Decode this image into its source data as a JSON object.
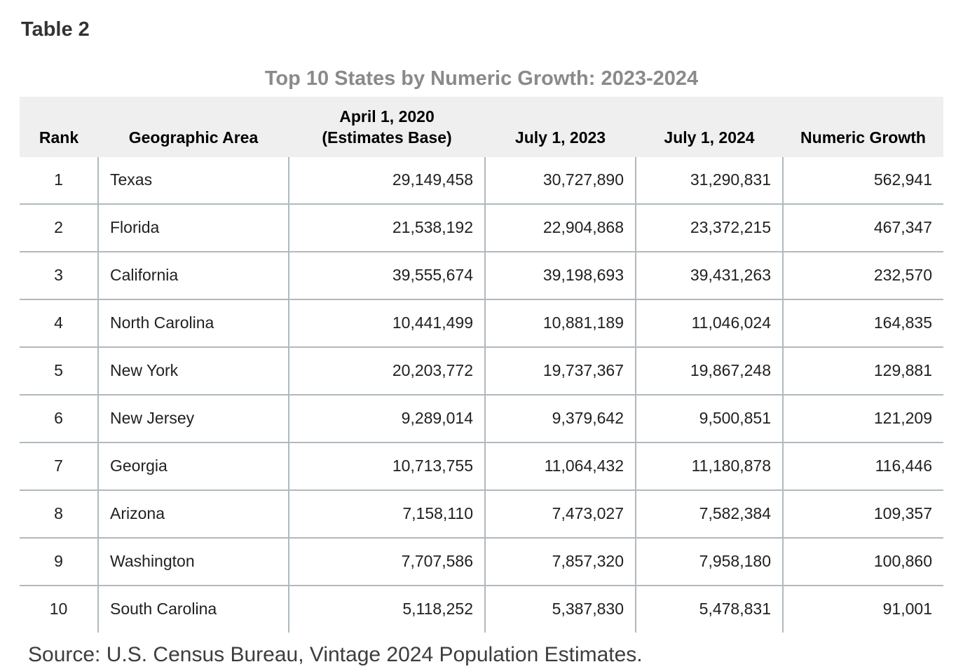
{
  "page": {
    "label": "Table 2",
    "title": "Top 10 States by Numeric Growth: 2023-2024",
    "source": "Source: U.S. Census Bureau, Vintage 2024 Population Estimates."
  },
  "colors": {
    "header_bg": "#efefef",
    "table_border": "#b0b9bd",
    "title_text": "#8a8a8a",
    "label_text": "#333333",
    "body_text": "#212121",
    "source_text": "#3d3d3d"
  },
  "table": {
    "columns": [
      {
        "key": "rank",
        "label": "Rank",
        "align": "center"
      },
      {
        "key": "area",
        "label": "Geographic Area",
        "align": "left"
      },
      {
        "key": "base_2020",
        "label": "April 1, 2020\n(Estimates Base)",
        "align": "right"
      },
      {
        "key": "jul_2023",
        "label": "July 1, 2023",
        "align": "right"
      },
      {
        "key": "jul_2024",
        "label": "July 1, 2024",
        "align": "right"
      },
      {
        "key": "growth",
        "label": "Numeric Growth",
        "align": "right"
      }
    ],
    "rows": [
      [
        "1",
        "Texas",
        "29,149,458",
        "30,727,890",
        "31,290,831",
        "562,941"
      ],
      [
        "2",
        "Florida",
        "21,538,192",
        "22,904,868",
        "23,372,215",
        "467,347"
      ],
      [
        "3",
        "California",
        "39,555,674",
        "39,198,693",
        "39,431,263",
        "232,570"
      ],
      [
        "4",
        "North Carolina",
        "10,441,499",
        "10,881,189",
        "11,046,024",
        "164,835"
      ],
      [
        "5",
        "New York",
        "20,203,772",
        "19,737,367",
        "19,867,248",
        "129,881"
      ],
      [
        "6",
        "New Jersey",
        "9,289,014",
        "9,379,642",
        "9,500,851",
        "121,209"
      ],
      [
        "7",
        "Georgia",
        "10,713,755",
        "11,064,432",
        "11,180,878",
        "116,446"
      ],
      [
        "8",
        "Arizona",
        "7,158,110",
        "7,473,027",
        "7,582,384",
        "109,357"
      ],
      [
        "9",
        "Washington",
        "7,707,586",
        "7,857,320",
        "7,958,180",
        "100,860"
      ],
      [
        "10",
        "South Carolina",
        "5,118,252",
        "5,387,830",
        "5,478,831",
        "91,001"
      ]
    ]
  },
  "chart_data": {
    "type": "table",
    "title": "Top 10 States by Numeric Growth: 2023-2024",
    "columns": [
      "Rank",
      "Geographic Area",
      "April 1, 2020 (Estimates Base)",
      "July 1, 2023",
      "July 1, 2024",
      "Numeric Growth"
    ],
    "rows": [
      [
        1,
        "Texas",
        29149458,
        30727890,
        31290831,
        562941
      ],
      [
        2,
        "Florida",
        21538192,
        22904868,
        23372215,
        467347
      ],
      [
        3,
        "California",
        39555674,
        39198693,
        39431263,
        232570
      ],
      [
        4,
        "North Carolina",
        10441499,
        10881189,
        11046024,
        164835
      ],
      [
        5,
        "New York",
        20203772,
        19737367,
        19867248,
        129881
      ],
      [
        6,
        "New Jersey",
        9289014,
        9379642,
        9500851,
        121209
      ],
      [
        7,
        "Georgia",
        10713755,
        11064432,
        11180878,
        116446
      ],
      [
        8,
        "Arizona",
        7158110,
        7473027,
        7582384,
        109357
      ],
      [
        9,
        "Washington",
        7707586,
        7857320,
        7958180,
        100860
      ],
      [
        10,
        "South Carolina",
        5118252,
        5387830,
        5478831,
        91001
      ]
    ],
    "source": "Source: U.S. Census Bureau, Vintage 2024 Population Estimates."
  }
}
